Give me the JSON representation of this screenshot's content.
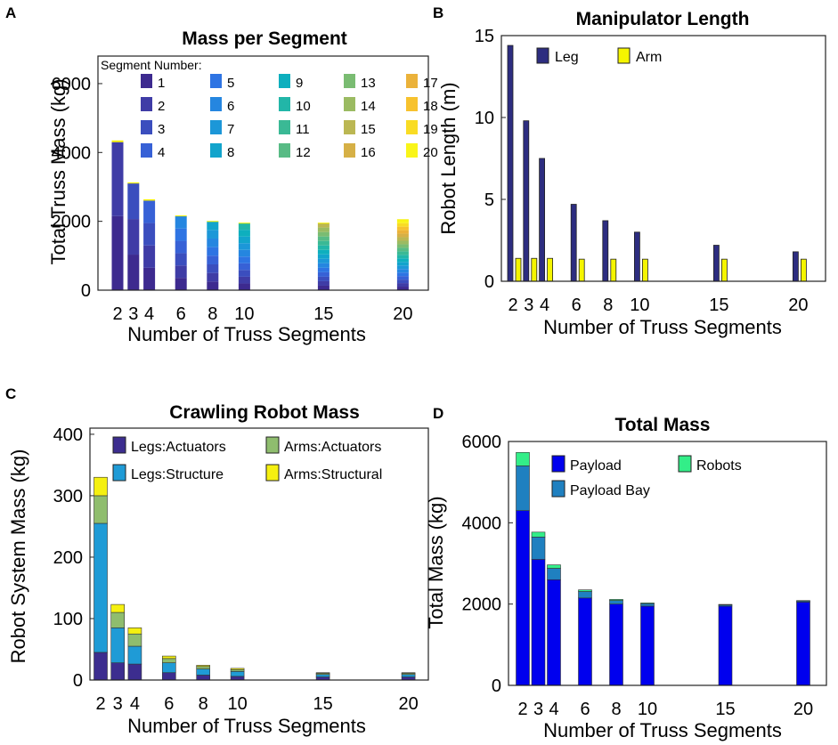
{
  "panel_letters": [
    "A",
    "B",
    "C",
    "D"
  ],
  "chart_data": [
    {
      "panel": "A",
      "type": "bar",
      "stacked": true,
      "title": "Mass per Segment",
      "xlabel": "Number of Truss Segments",
      "ylabel": "Total Truss Mass (kg)",
      "categories": [
        2,
        3,
        4,
        6,
        8,
        10,
        15,
        20
      ],
      "ylim": [
        0,
        6800
      ],
      "yticks": [
        0,
        2000,
        4000,
        6000
      ],
      "legend_title": "Segment Number:",
      "legend_labels": [
        "1",
        "2",
        "3",
        "4",
        "5",
        "6",
        "7",
        "8",
        "9",
        "10",
        "11",
        "12",
        "13",
        "14",
        "15",
        "16",
        "17",
        "18",
        "19",
        "20"
      ],
      "segment_colors": [
        "#3d2a8f",
        "#3f3ca6",
        "#3b4ebe",
        "#3761d6",
        "#2e74e3",
        "#2586e0",
        "#1c97d8",
        "#12a4cc",
        "#0eafbe",
        "#22b6a8",
        "#3ab995",
        "#58bb85",
        "#7abc72",
        "#9bbb62",
        "#bbb753",
        "#d6b046",
        "#ebb23a",
        "#f7c22e",
        "#f9dc24",
        "#f9f519"
      ],
      "totals": [
        4300,
        3100,
        2600,
        2150,
        2000,
        1950,
        1950,
        2050
      ],
      "top_caps": [
        4350,
        3130,
        2640,
        2170,
        2010,
        1960,
        1960,
        2060
      ]
    },
    {
      "panel": "B",
      "type": "bar",
      "title": "Manipulator Length",
      "xlabel": "Number of Truss Segments",
      "ylabel": "Robot Length (m)",
      "categories": [
        2,
        3,
        4,
        6,
        8,
        10,
        15,
        20
      ],
      "ylim": [
        0,
        15
      ],
      "yticks": [
        0,
        5,
        10,
        15
      ],
      "series": [
        {
          "name": "Leg",
          "color": "#2d2d80",
          "values": [
            14.4,
            9.8,
            7.5,
            4.7,
            3.7,
            3.0,
            2.2,
            1.8
          ]
        },
        {
          "name": "Arm",
          "color": "#f5f500",
          "values": [
            1.4,
            1.4,
            1.4,
            1.35,
            1.35,
            1.35,
            1.35,
            1.35
          ]
        }
      ]
    },
    {
      "panel": "C",
      "type": "bar",
      "stacked": true,
      "title": "Crawling Robot Mass",
      "xlabel": "Number of Truss Segments",
      "ylabel": "Robot System Mass (kg)",
      "categories": [
        2,
        3,
        4,
        6,
        8,
        10,
        15,
        20
      ],
      "ylim": [
        0,
        410
      ],
      "yticks": [
        0,
        100,
        200,
        300,
        400
      ],
      "series": [
        {
          "name": "Legs:Actuators",
          "color": "#3c2d8f",
          "values": [
            45,
            28,
            26,
            12,
            8,
            6,
            5,
            5
          ]
        },
        {
          "name": "Legs:Structure",
          "color": "#1f9bd6",
          "values": [
            210,
            57,
            29,
            16,
            10,
            8,
            4,
            4
          ]
        },
        {
          "name": "Arms:Actuators",
          "color": "#8fbd6e",
          "values": [
            45,
            25,
            20,
            7,
            4,
            3,
            2,
            2
          ]
        },
        {
          "name": "Arms:Structural",
          "color": "#f5f010",
          "values": [
            30,
            13,
            10,
            4,
            2,
            2,
            1,
            1
          ]
        }
      ]
    },
    {
      "panel": "D",
      "type": "bar",
      "stacked": true,
      "title": "Total Mass",
      "xlabel": "Number of Truss Segments",
      "ylabel": "Total Mass (kg)",
      "categories": [
        2,
        3,
        4,
        6,
        8,
        10,
        15,
        20
      ],
      "ylim": [
        0,
        6000
      ],
      "yticks": [
        0,
        2000,
        4000,
        6000
      ],
      "series": [
        {
          "name": "Payload",
          "color": "#0000ee",
          "values": [
            4300,
            3100,
            2600,
            2150,
            2000,
            1950,
            1950,
            2050
          ]
        },
        {
          "name": "Payload Bay",
          "color": "#1f80c0",
          "values": [
            1100,
            550,
            280,
            160,
            90,
            60,
            30,
            25
          ]
        },
        {
          "name": "Robots",
          "color": "#33ee88",
          "values": [
            330,
            120,
            85,
            40,
            25,
            18,
            12,
            12
          ]
        }
      ]
    }
  ]
}
